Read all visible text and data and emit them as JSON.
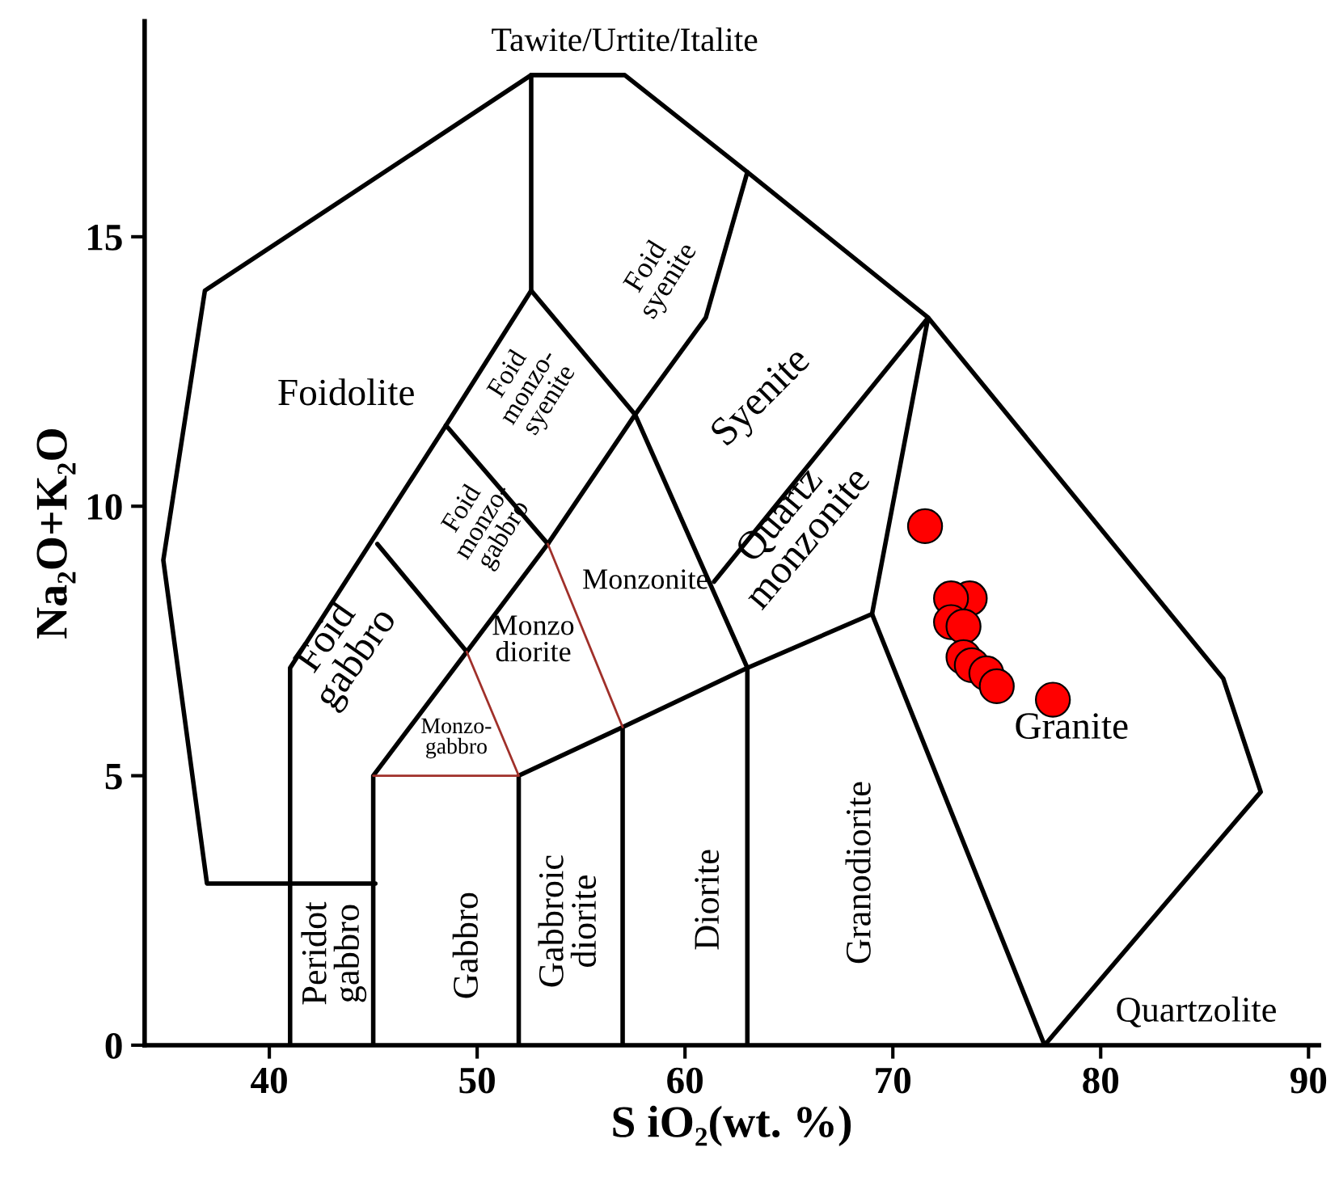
{
  "chart_data": {
    "type": "scatter",
    "xlabel": "S iO₂(wt. %)",
    "ylabel": "Na₂O+K₂O",
    "xlim": [
      34,
      90.5
    ],
    "ylim": [
      0,
      19
    ],
    "xticks": [
      40,
      50,
      60,
      70,
      80,
      90
    ],
    "yticks": [
      0,
      5,
      10,
      15
    ],
    "grid": false,
    "legend": false,
    "series": [
      {
        "color": "#ff0000",
        "marker": "circle",
        "x": [
          71.55,
          73.7,
          72.8,
          72.8,
          73.4,
          73.4,
          73.8,
          74.5,
          75.0,
          77.7
        ],
        "values": [
          9.63,
          8.29,
          8.29,
          7.85,
          7.77,
          7.2,
          7.05,
          6.9,
          6.66,
          6.41
        ]
      },
      {
        "type": "line",
        "color": "#000000",
        "x": [
          45.1,
          37,
          34.9,
          36.9,
          52.6,
          57.1,
          63,
          71.7,
          85.9,
          87.7,
          77.3,
          69,
          71.7,
          61.4
        ],
        "values": [
          3,
          3,
          9,
          14,
          18,
          18,
          16.2,
          13.5,
          6.8,
          4.7,
          0,
          8,
          13.5,
          8.6
        ]
      },
      {
        "type": "line",
        "color": "#000000",
        "x": [
          41,
          41,
          48.5,
          52.6,
          52.6
        ],
        "values": [
          0,
          7,
          11.5,
          14,
          18
        ]
      },
      {
        "type": "line",
        "color": "#000000",
        "x": [
          63,
          61,
          57.6,
          63,
          63
        ],
        "values": [
          16.2,
          13.5,
          11.7,
          7,
          0
        ]
      },
      {
        "type": "line",
        "color": "#000000",
        "x": [
          52.6,
          57.6,
          53.4,
          49.5,
          45,
          45
        ],
        "values": [
          14,
          11.7,
          9.3,
          7.3,
          5,
          0
        ]
      },
      {
        "type": "line",
        "color": "#000000",
        "x": [
          57,
          57,
          63,
          69
        ],
        "values": [
          0,
          5.9,
          7,
          8
        ]
      },
      {
        "type": "line",
        "color": "#000000",
        "x": [
          52,
          52,
          57
        ],
        "values": [
          0,
          5,
          5.9
        ]
      },
      {
        "type": "line",
        "color": "#000000",
        "x": [
          48.5,
          53.4
        ],
        "values": [
          11.5,
          9.3
        ]
      },
      {
        "type": "line",
        "color": "#000000",
        "x": [
          45.2,
          49.5
        ],
        "values": [
          9.3,
          7.3
        ]
      },
      {
        "type": "line",
        "color": "#a0302a",
        "x": [
          53.4,
          57
        ],
        "values": [
          9.3,
          5.9
        ]
      },
      {
        "type": "line",
        "color": "#a0302a",
        "x": [
          49.5,
          52,
          45
        ],
        "values": [
          7.3,
          5,
          5
        ]
      }
    ],
    "annotations": [
      "Tawite/Urtite/Italite",
      "Foidolite",
      "Foid\nsyenite",
      "Foid\nmonzo-\nsyenite",
      "Syenite",
      "Foid\nmonzo-\ngabbro",
      "Monzonite",
      "Quartz\nmonzonite",
      "Foid\ngabbro",
      "Monzo\ndiorite",
      "Monzo-\ngabbro",
      "Granite",
      "Peridot\ngabbro",
      "Gabbro",
      "Gabbroic\ndiorite",
      "Diorite",
      "Granodiorite",
      "Quartzolite"
    ]
  }
}
